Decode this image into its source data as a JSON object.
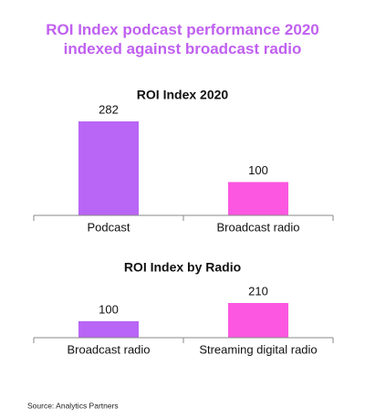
{
  "title": "ROI Index podcast performance 2020 indexed against broadcast radio",
  "source": "Source: Analytics Partners",
  "chart_data": [
    {
      "type": "bar",
      "title": "ROI Index 2020",
      "categories": [
        "Podcast",
        "Broadcast radio"
      ],
      "values": [
        282,
        100
      ],
      "colors": [
        "#b965f5",
        "#fc57e0"
      ]
    },
    {
      "type": "bar",
      "title": "ROI Index by Radio",
      "categories": [
        "Broadcast radio",
        "Streaming digital radio"
      ],
      "values": [
        100,
        210
      ],
      "colors": [
        "#b965f5",
        "#fc57e0"
      ]
    }
  ]
}
